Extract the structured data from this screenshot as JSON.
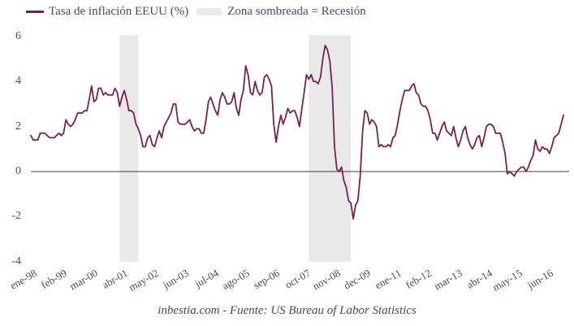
{
  "legend": {
    "series_label": "Tasa de inflación EEUU (%)",
    "shaded_label": "Zona sombreada = Recesión"
  },
  "footer": {
    "source_text": "inbestia.com - Fuente: US Bureau of Labor Statistics"
  },
  "colors": {
    "line": "#78204f",
    "recession_band": "#e9e9e9",
    "zero_line": "#3c3c3c",
    "text": "#3e4d68"
  },
  "chart_data": {
    "type": "line",
    "title": "",
    "xlabel": "",
    "ylabel": "",
    "ylim": [
      -4,
      6
    ],
    "y_ticks": [
      6,
      4,
      2,
      0,
      -2,
      -4
    ],
    "grid": false,
    "zero_line": true,
    "legend_position": "top-left",
    "x_unit": "month",
    "x_tick_labels": [
      "ene-98",
      "feb-99",
      "mar-00",
      "abr-01",
      "may-02",
      "jun-03",
      "jul-04",
      "ago-05",
      "sep-06",
      "oct-07",
      "nov-08",
      "dec-09",
      "ene-11",
      "feb-12",
      "mar-13",
      "abr-14",
      "may-15",
      "jun-16"
    ],
    "x_tick_month_indices": [
      0,
      13,
      26,
      39,
      52,
      65,
      78,
      91,
      104,
      117,
      130,
      143,
      156,
      169,
      182,
      195,
      208,
      221
    ],
    "recessions": [
      {
        "start_month_index": 38,
        "end_month_index": 46
      },
      {
        "start_month_index": 119,
        "end_month_index": 137
      }
    ],
    "series": [
      {
        "name": "Tasa de inflación EEUU (%)",
        "start": "ene-98",
        "frequency": "monthly",
        "values": [
          1.6,
          1.4,
          1.4,
          1.4,
          1.7,
          1.7,
          1.7,
          1.6,
          1.5,
          1.5,
          1.5,
          1.6,
          1.7,
          1.6,
          1.7,
          2.3,
          2.1,
          2.0,
          2.1,
          2.3,
          2.6,
          2.6,
          2.6,
          2.7,
          2.7,
          3.2,
          3.8,
          3.1,
          3.2,
          3.7,
          3.7,
          3.4,
          3.5,
          3.4,
          3.4,
          3.4,
          3.7,
          3.5,
          2.9,
          3.3,
          3.6,
          3.2,
          2.7,
          2.7,
          2.6,
          2.1,
          1.9,
          1.6,
          1.1,
          1.1,
          1.5,
          1.6,
          1.2,
          1.1,
          1.5,
          1.8,
          1.5,
          2.0,
          2.2,
          2.4,
          2.6,
          3.0,
          3.0,
          2.2,
          2.1,
          2.1,
          2.1,
          2.2,
          2.3,
          2.0,
          1.8,
          1.9,
          1.9,
          1.7,
          1.7,
          2.3,
          3.1,
          3.3,
          3.0,
          2.7,
          2.5,
          3.2,
          3.5,
          3.3,
          3.0,
          3.0,
          3.1,
          3.5,
          2.8,
          2.5,
          3.2,
          3.6,
          4.7,
          4.3,
          3.5,
          3.4,
          4.0,
          3.6,
          3.4,
          3.5,
          4.2,
          4.3,
          4.1,
          3.8,
          2.1,
          1.3,
          2.0,
          2.5,
          2.1,
          2.4,
          2.8,
          2.6,
          2.7,
          2.7,
          2.4,
          2.0,
          2.8,
          3.5,
          4.3,
          4.1,
          4.3,
          4.0,
          4.0,
          3.9,
          4.2,
          5.0,
          5.6,
          5.4,
          4.9,
          3.7,
          1.1,
          0.1,
          0.0,
          0.2,
          -0.4,
          -0.7,
          -1.3,
          -1.4,
          -2.1,
          -1.5,
          -1.3,
          -0.2,
          1.8,
          2.7,
          2.6,
          2.1,
          2.3,
          2.2,
          2.0,
          1.1,
          1.2,
          1.1,
          1.1,
          1.2,
          1.1,
          1.5,
          1.6,
          2.1,
          2.7,
          3.2,
          3.6,
          3.6,
          3.6,
          3.8,
          3.9,
          3.5,
          3.4,
          3.0,
          2.9,
          2.9,
          2.7,
          2.3,
          1.7,
          1.7,
          1.4,
          1.7,
          2.0,
          2.2,
          1.8,
          1.7,
          1.6,
          2.0,
          1.5,
          1.1,
          1.4,
          1.8,
          2.0,
          1.5,
          1.2,
          1.0,
          1.2,
          1.5,
          1.6,
          1.1,
          1.5,
          2.0,
          2.1,
          2.1,
          2.0,
          1.7,
          1.7,
          1.7,
          1.3,
          0.8,
          -0.1,
          0.0,
          -0.1,
          -0.2,
          0.0,
          0.1,
          0.2,
          0.2,
          0.0,
          0.2,
          0.5,
          0.7,
          1.4,
          1.0,
          0.9,
          1.1,
          1.0,
          1.0,
          0.8,
          1.1,
          1.5,
          1.6,
          1.7,
          2.1,
          2.5
        ]
      }
    ]
  }
}
